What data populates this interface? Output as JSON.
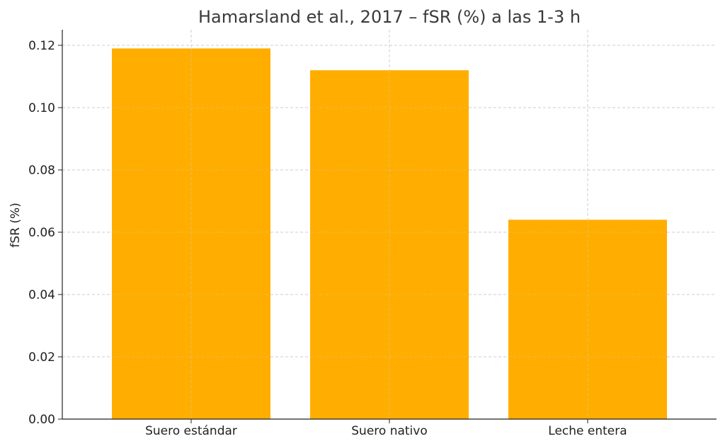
{
  "chart_data": {
    "type": "bar",
    "title": "Hamarsland et al., 2017 – fSR (%) a las 1-3 h",
    "xlabel": "",
    "ylabel": "fSR (%)",
    "categories": [
      "Suero estándar",
      "Suero nativo",
      "Leche entera"
    ],
    "values": [
      0.119,
      0.112,
      0.064
    ],
    "ylim": [
      0,
      0.125
    ],
    "yticks": [
      "0.00",
      "0.02",
      "0.04",
      "0.06",
      "0.08",
      "0.10",
      "0.12"
    ],
    "bar_color": "#FFAE00",
    "grid": true,
    "legend": "none"
  }
}
